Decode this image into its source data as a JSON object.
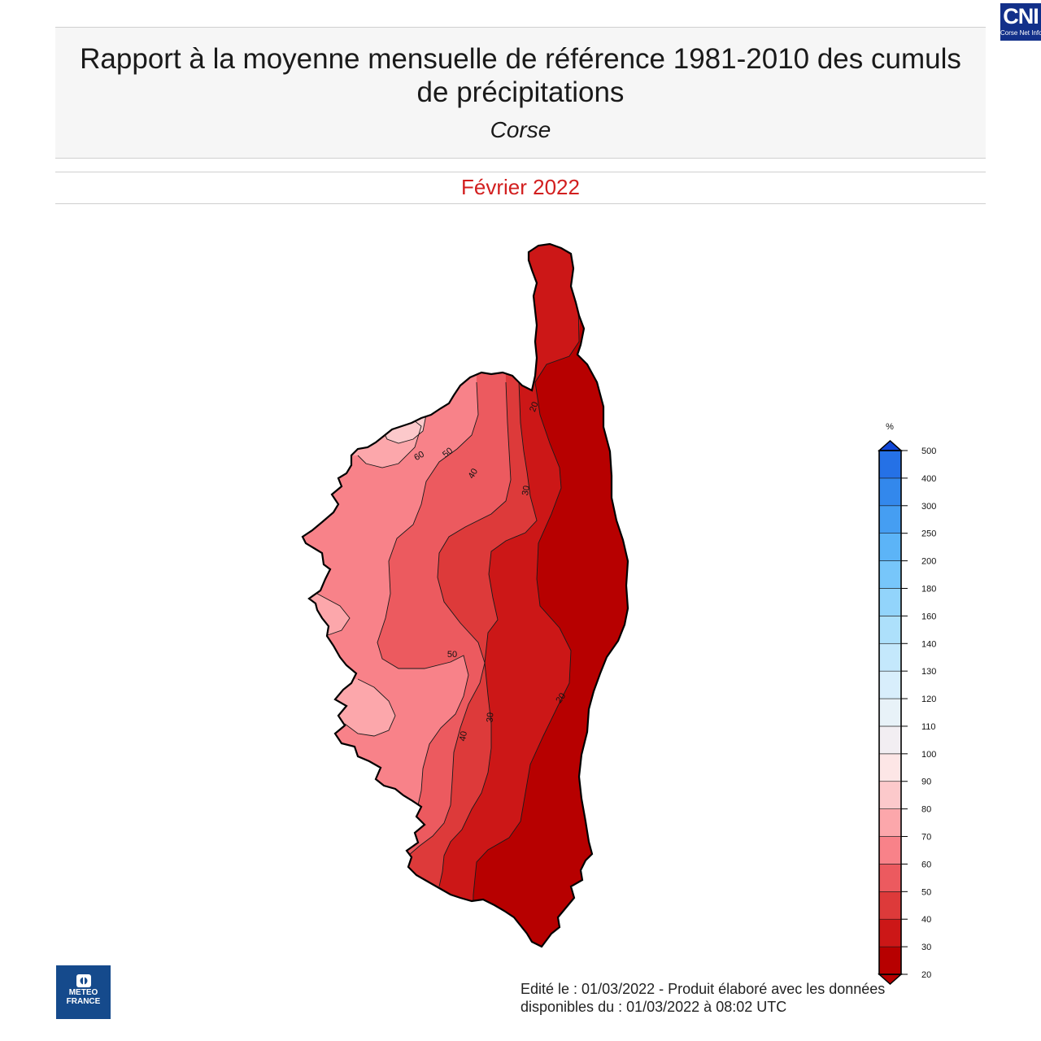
{
  "header": {
    "title": "Rapport à la moyenne mensuelle de référence 1981-2010 des cumuls de précipitations",
    "region": "Corse",
    "month": "Février 2022",
    "colors": {
      "month_text": "#d21f1f"
    }
  },
  "corner_logo": {
    "big": "CNI",
    "small": "Corse Net Infos",
    "color": "#12308a"
  },
  "map": {
    "contour_labels": [
      "20",
      "30",
      "40",
      "50",
      "60",
      "50",
      "40",
      "30",
      "20"
    ],
    "zone_colors": [
      "#b70000",
      "#cc1717",
      "#dd3a3a",
      "#ec5a5f",
      "#f88289",
      "#fca7ab",
      "#fcc9cb"
    ]
  },
  "legend": {
    "unit": "%",
    "levels": [
      "20",
      "30",
      "40",
      "50",
      "60",
      "70",
      "80",
      "90",
      "100",
      "110",
      "120",
      "130",
      "140",
      "160",
      "180",
      "200",
      "250",
      "300",
      "400",
      "500"
    ],
    "colors": [
      "#b70000",
      "#cc1717",
      "#dd3a3a",
      "#ec5a5f",
      "#f88289",
      "#fca7ab",
      "#fcc9cb",
      "#fde6e6",
      "#f2eef2",
      "#e8f2f8",
      "#d8eefc",
      "#c4e8fc",
      "#ade0fb",
      "#92d4fb",
      "#77c6fa",
      "#5cb4f7",
      "#459ef2",
      "#3388ec",
      "#2571e6",
      "#1858df"
    ],
    "below_arrow_color": "#b70000",
    "above_arrow_color": "#1147d6"
  },
  "meteo_logo": {
    "line1": "METEO",
    "line2": "FRANCE",
    "color": "#154a8c"
  },
  "footer": {
    "line1": "Edité le : 01/03/2022 - Produit élaboré avec les données",
    "line2": "disponibles du : 01/03/2022 à 08:02 UTC"
  }
}
